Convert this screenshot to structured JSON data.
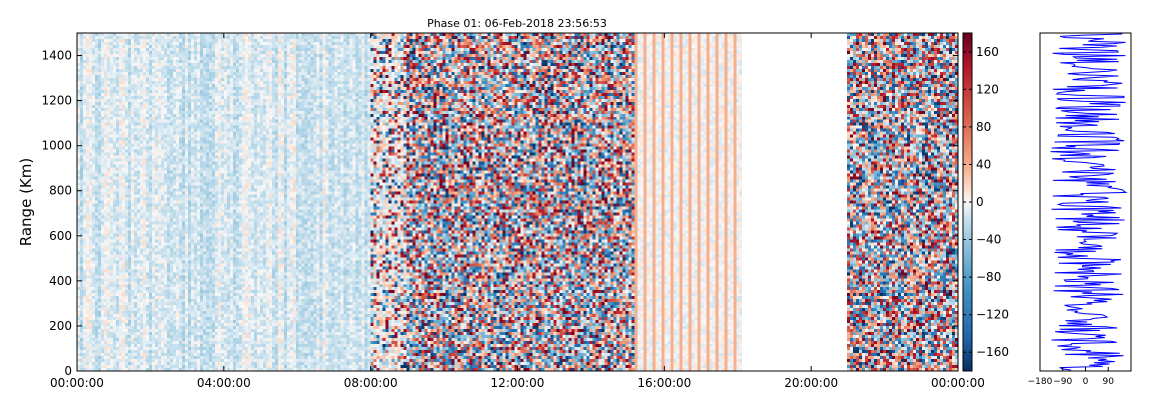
{
  "chart_data": [
    {
      "type": "heatmap",
      "title": "Phase 01: 06-Feb-2018 23:56:53",
      "xlabel": "",
      "ylabel": "Range (Km)",
      "x_tick_labels": [
        "00:00:00",
        "04:00:00",
        "08:00:00",
        "12:00:00",
        "16:00:00",
        "20:00:00",
        "00:00:00"
      ],
      "x_tick_hours": [
        0,
        4,
        8,
        12,
        16,
        20,
        24
      ],
      "xlim_hours": [
        0,
        24
      ],
      "y_ticks": [
        0,
        200,
        400,
        600,
        800,
        1000,
        1200,
        1400
      ],
      "ylim": [
        0,
        1500
      ],
      "grid": false,
      "colorscale": "RdBu_r",
      "colorbar": {
        "ticks": [
          160,
          120,
          80,
          40,
          0,
          -40,
          -80,
          -120,
          -160
        ],
        "tick_labels": [
          "160",
          "120",
          "80",
          "40",
          "0",
          "−40",
          "−80",
          "−120",
          "−160"
        ],
        "range": [
          -180,
          180
        ]
      },
      "segments": [
        {
          "start_hour": 0,
          "end_hour": 8,
          "activity": "low"
        },
        {
          "start_hour": 8,
          "end_hour": 9,
          "activity": "medium"
        },
        {
          "start_hour": 9,
          "end_hour": 15.2,
          "activity": "high"
        },
        {
          "start_hour": 15.2,
          "end_hour": 18.1,
          "activity": "stripes"
        },
        {
          "start_hour": 18.1,
          "end_hour": 21,
          "activity": "no data"
        },
        {
          "start_hour": 21,
          "end_hour": 24,
          "activity": "high"
        }
      ]
    },
    {
      "type": "line",
      "title": "",
      "xlabel": "",
      "ylabel": "",
      "x_tick_labels": [
        "−180",
        "−90",
        "0",
        "90"
      ],
      "x_ticks": [
        -180,
        -90,
        0,
        90
      ],
      "xlim": [
        -180,
        180
      ],
      "ylim": [
        0,
        1500
      ],
      "series_color": "#0000ff",
      "description": "Phase profile vs range; values vary between about -140 and 160"
    }
  ]
}
